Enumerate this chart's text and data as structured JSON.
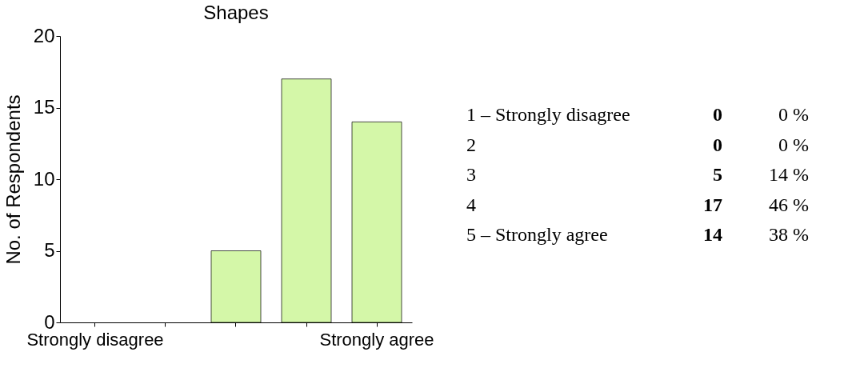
{
  "chart_data": {
    "type": "bar",
    "title": "Shapes",
    "ylabel": "No. of Respondents",
    "categories": [
      "Strongly disagree",
      null,
      null,
      null,
      "Strongly agree"
    ],
    "values": [
      0,
      0,
      5,
      17,
      14
    ],
    "color": "#d4f7a8",
    "ylim": [
      0,
      20
    ],
    "yticks": [
      0,
      5,
      10,
      15,
      20
    ],
    "grid": false,
    "annotations": [
      "1 – Strongly disagree",
      "2",
      "3",
      "4",
      "5 – Strongly agree",
      "0",
      "0",
      "5",
      "17",
      "14",
      "0 %",
      "0 %",
      "14 %",
      "46 %",
      "38 %"
    ]
  }
}
